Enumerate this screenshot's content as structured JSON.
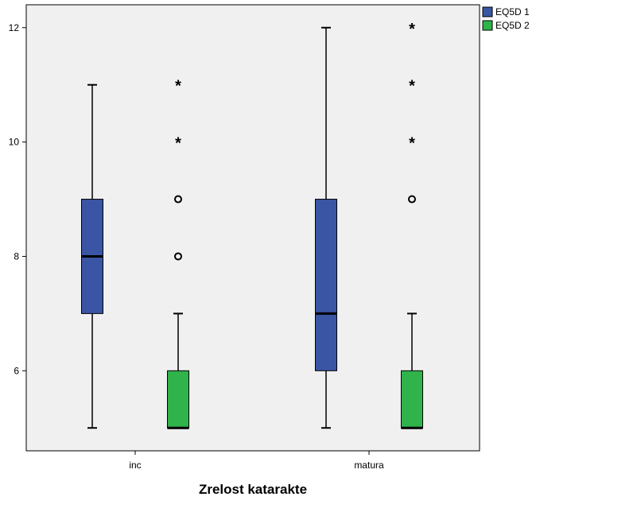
{
  "chart_data": {
    "type": "boxplot",
    "xlabel": "Zrelost katarakte",
    "ylabel": "",
    "categories": [
      "inc",
      "matura"
    ],
    "ylim": [
      4.6,
      12.4
    ],
    "yticks": [
      6,
      8,
      10,
      12
    ],
    "grid": false,
    "legend_position": "top-right",
    "series": [
      {
        "name": "EQ5D 1",
        "color": "#3a55a4",
        "boxes": [
          {
            "category": "inc",
            "whisker_low": 5,
            "q1": 7,
            "median": 8,
            "q3": 9,
            "whisker_high": 11,
            "outliers": [],
            "extremes": []
          },
          {
            "category": "matura",
            "whisker_low": 5,
            "q1": 6,
            "median": 7,
            "q3": 9,
            "whisker_high": 12,
            "outliers": [],
            "extremes": []
          }
        ]
      },
      {
        "name": "EQ5D 2",
        "color": "#2fb34a",
        "boxes": [
          {
            "category": "inc",
            "whisker_low": 5,
            "q1": 5,
            "median": 5,
            "q3": 6,
            "whisker_high": 7,
            "outliers": [
              8,
              9
            ],
            "extremes": [
              10,
              11
            ]
          },
          {
            "category": "matura",
            "whisker_low": 5,
            "q1": 5,
            "median": 5,
            "q3": 6,
            "whisker_high": 7,
            "outliers": [
              9
            ],
            "extremes": [
              10,
              11,
              12
            ]
          }
        ]
      }
    ]
  }
}
